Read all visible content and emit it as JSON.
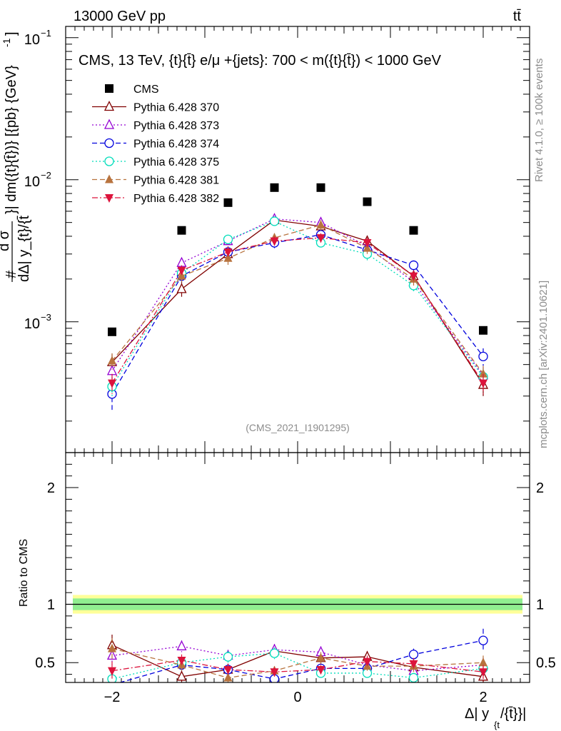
{
  "header": {
    "left_title": "13000 GeV pp",
    "right_title": "tt̄"
  },
  "side": {
    "rivet": "Rivet 4.1.0, ≥ 100k events",
    "mcplots": "mcplots.cern.ch [arXiv:2401.10621]"
  },
  "chart_data": [
    {
      "type": "scatter",
      "panel": "main",
      "title": "CMS, 13 TeV, {t}{t̄} e/μ +{jets}: 700 < m({t}{t̄}) < 1000 GeV",
      "ylabel": "# d σ / dΔ| y_{t}/{t̄}| dm({t}{t̄})} [{pb} {GeV}^-1]",
      "ylabel_lines": [
        "#",
        "d σ",
        "dΔ| y_{t}/{t̄",
        "}| dm({t}{t̄})} [{pb} {GeV}",
        "-1",
        "]"
      ],
      "yscale": "log",
      "ylim": [
        0.00012,
        0.12
      ],
      "xlim": [
        -2.5,
        2.5
      ],
      "xlabel": "Δ| y_{t}/{t̄}|",
      "xlabel_parts": [
        "Δ| y",
        "{t",
        "/{t̄}}|"
      ],
      "x": [
        -2.0,
        -1.25,
        -0.75,
        -0.25,
        0.25,
        0.75,
        1.25,
        2.0
      ],
      "y_tick_labels": [
        {
          "base": "10",
          "exp": "−3",
          "value": 0.001
        },
        {
          "base": "10",
          "exp": "−2",
          "value": 0.01
        },
        {
          "base": "10",
          "exp": "−1",
          "value": 0.1
        }
      ],
      "watermark": "(CMS_2021_I1901295)",
      "legend_position": "top-left",
      "series": [
        {
          "name": "CMS",
          "key": "cms",
          "color": "#000000",
          "marker": "square",
          "line": "none",
          "values": [
            0.00085,
            0.0044,
            0.0069,
            0.0088,
            0.0088,
            0.007,
            0.0044,
            0.00087
          ],
          "errors": [
            3.5e-05,
            0.00015,
            0.0002,
            0.00025,
            0.00025,
            0.0002,
            0.00015,
            3.5e-05
          ]
        },
        {
          "name": "Pythia 6.428 370",
          "key": "p370",
          "color": "#800000",
          "marker": "triangle-open",
          "line": "solid",
          "values": [
            0.00052,
            0.0017,
            0.003,
            0.0052,
            0.0047,
            0.0037,
            0.0021,
            0.00036
          ],
          "errors": [
            7e-05,
            0.0002,
            0.0003,
            0.0004,
            0.0004,
            0.0003,
            0.0002,
            6e-05
          ]
        },
        {
          "name": "Pythia 6.428 373",
          "key": "p373",
          "color": "#9400d3",
          "marker": "triangle-open",
          "line": "dotted",
          "values": [
            0.00045,
            0.0026,
            0.0037,
            0.0053,
            0.005,
            0.0034,
            0.0019,
            0.00042
          ],
          "errors": [
            6e-05,
            0.0002,
            0.0003,
            0.0004,
            0.0004,
            0.0003,
            0.0002,
            6e-05
          ]
        },
        {
          "name": "Pythia 6.428 374",
          "key": "p374",
          "color": "#0000dd",
          "marker": "circle-open",
          "line": "dashed",
          "values": [
            0.00031,
            0.0021,
            0.0031,
            0.0036,
            0.0041,
            0.0032,
            0.0025,
            0.00057
          ],
          "errors": [
            7e-05,
            0.0002,
            0.0003,
            0.0003,
            0.0003,
            0.0003,
            0.0002,
            8e-05
          ]
        },
        {
          "name": "Pythia 6.428 375",
          "key": "p375",
          "color": "#00ddbb",
          "marker": "circle-open",
          "line": "dotted",
          "values": [
            0.00035,
            0.0022,
            0.0038,
            0.0051,
            0.0036,
            0.003,
            0.0018,
            0.00041
          ],
          "errors": [
            6e-05,
            0.0002,
            0.0003,
            0.0004,
            0.0003,
            0.0003,
            0.0002,
            6e-05
          ]
        },
        {
          "name": "Pythia 6.428 381",
          "key": "p381",
          "color": "#b8733e",
          "marker": "triangle-filled",
          "line": "dashed",
          "values": [
            0.00053,
            0.0021,
            0.0028,
            0.0039,
            0.0048,
            0.0033,
            0.002,
            0.00043
          ],
          "errors": [
            7e-05,
            0.0002,
            0.0003,
            0.0003,
            0.0004,
            0.0003,
            0.0002,
            6e-05
          ]
        },
        {
          "name": "Pythia 6.428 382",
          "key": "p382",
          "color": "#dc143c",
          "marker": "triangle-down-filled",
          "line": "dashdot",
          "values": [
            0.00037,
            0.0023,
            0.0031,
            0.0037,
            0.0039,
            0.0036,
            0.0021,
            0.00037
          ],
          "errors": [
            6e-05,
            0.0002,
            0.0003,
            0.0003,
            0.0003,
            0.0003,
            0.0002,
            6e-05
          ]
        }
      ]
    },
    {
      "type": "scatter",
      "panel": "ratio",
      "ylabel": "Ratio to CMS",
      "ylim": [
        0.33,
        2.3
      ],
      "xlim": [
        -2.5,
        2.5
      ],
      "y_ticks": [
        0.5,
        1,
        2
      ],
      "y_tick_labels": [
        "0.5",
        "1",
        "2"
      ],
      "x_ticks": [
        -2,
        0,
        2
      ],
      "x_tick_labels": [
        "−2",
        "0",
        "2"
      ],
      "band_inner": [
        0.95,
        1.05
      ],
      "band_outer": [
        0.92,
        1.08
      ],
      "x": [
        -2.0,
        -1.25,
        -0.75,
        -0.25,
        0.25,
        0.75,
        1.25,
        2.0
      ],
      "series": [
        {
          "key": "p370",
          "values": [
            0.65,
            0.38,
            0.44,
            0.6,
            0.54,
            0.55,
            0.46,
            0.38
          ],
          "errors": [
            0.09,
            0.05,
            0.05,
            0.05,
            0.05,
            0.05,
            0.05,
            0.06
          ]
        },
        {
          "key": "p373",
          "values": [
            0.56,
            0.64,
            0.56,
            0.61,
            0.59,
            0.48,
            0.43,
            0.48
          ],
          "errors": [
            0.08,
            0.05,
            0.05,
            0.05,
            0.05,
            0.05,
            0.05,
            0.06
          ]
        },
        {
          "key": "p374",
          "values": [
            0.31,
            0.48,
            0.44,
            0.36,
            0.45,
            0.45,
            0.57,
            0.69
          ],
          "errors": [
            0.08,
            0.05,
            0.05,
            0.04,
            0.04,
            0.04,
            0.05,
            0.1
          ]
        },
        {
          "key": "p375",
          "values": [
            0.36,
            0.5,
            0.55,
            0.58,
            0.41,
            0.41,
            0.37,
            0.45
          ],
          "errors": [
            0.07,
            0.05,
            0.05,
            0.05,
            0.04,
            0.04,
            0.04,
            0.06
          ]
        },
        {
          "key": "p381",
          "values": [
            0.62,
            0.48,
            0.37,
            0.43,
            0.54,
            0.47,
            0.47,
            0.5
          ],
          "errors": [
            0.09,
            0.05,
            0.04,
            0.04,
            0.05,
            0.04,
            0.05,
            0.06
          ]
        },
        {
          "key": "p382",
          "values": [
            0.43,
            0.52,
            0.44,
            0.42,
            0.44,
            0.51,
            0.49,
            0.42
          ],
          "errors": [
            0.08,
            0.05,
            0.05,
            0.04,
            0.04,
            0.05,
            0.05,
            0.06
          ]
        }
      ]
    }
  ]
}
